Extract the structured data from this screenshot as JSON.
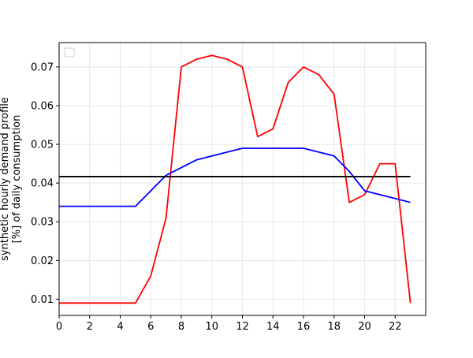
{
  "chart_data": {
    "type": "line",
    "title": "",
    "xlabel": "",
    "ylabel_lines": [
      "synthetic hourly demand profile",
      "[%] of daily consumption"
    ],
    "xlim": [
      0,
      24
    ],
    "ylim": [
      0.0058,
      0.0763
    ],
    "x_ticks": [
      0,
      2,
      4,
      6,
      8,
      10,
      12,
      14,
      16,
      18,
      20,
      22
    ],
    "y_ticks": [
      0.01,
      0.02,
      0.03,
      0.04,
      0.05,
      0.06,
      0.07
    ],
    "y_tick_labels": [
      "0.01",
      "0.02",
      "0.03",
      "0.04",
      "0.05",
      "0.06",
      "0.07"
    ],
    "grid": true,
    "legend": {
      "placement": "top-left",
      "entries": []
    },
    "series": [
      {
        "color": "#ff0000",
        "x": [
          0,
          1,
          2,
          3,
          4,
          5,
          6,
          7,
          8,
          9,
          10,
          11,
          12,
          13,
          14,
          15,
          16,
          17,
          18,
          19,
          20,
          21,
          22,
          23
        ],
        "values": [
          0.009,
          0.009,
          0.009,
          0.009,
          0.009,
          0.009,
          0.016,
          0.031,
          0.07,
          0.072,
          0.073,
          0.072,
          0.07,
          0.052,
          0.054,
          0.066,
          0.07,
          0.068,
          0.063,
          0.035,
          0.037,
          0.045,
          0.045,
          0.009
        ]
      },
      {
        "color": "#0000ff",
        "x": [
          0,
          1,
          2,
          3,
          4,
          5,
          6,
          7,
          8,
          9,
          10,
          11,
          12,
          13,
          14,
          15,
          16,
          17,
          18,
          19,
          20,
          21,
          22,
          23
        ],
        "values": [
          0.034,
          0.034,
          0.034,
          0.034,
          0.034,
          0.034,
          0.038,
          0.042,
          0.044,
          0.046,
          0.047,
          0.048,
          0.049,
          0.049,
          0.049,
          0.049,
          0.049,
          0.048,
          0.047,
          0.043,
          0.038,
          0.037,
          0.036,
          0.035
        ]
      },
      {
        "color": "#000000",
        "x": [
          0,
          23
        ],
        "values": [
          0.04167,
          0.04167
        ]
      }
    ]
  }
}
